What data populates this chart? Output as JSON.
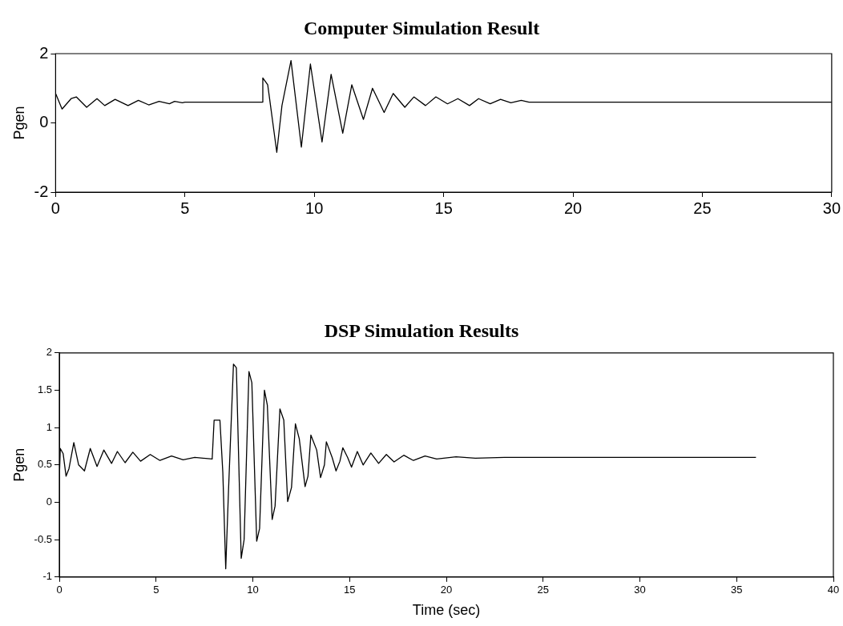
{
  "chart_data": [
    {
      "type": "line",
      "title": "Computer Simulation Result",
      "ylabel": "Pgen",
      "color": "#000000",
      "xlim": [
        0,
        30
      ],
      "xticks": [
        0,
        5,
        10,
        15,
        20,
        25,
        30
      ],
      "ylim": [
        -2,
        2
      ],
      "yticks": [
        -2,
        0,
        2
      ],
      "x": [
        0,
        0.25,
        0.6,
        0.8,
        1.2,
        1.6,
        1.9,
        2.3,
        2.8,
        3.2,
        3.6,
        4.0,
        4.4,
        4.6,
        4.9,
        5.0,
        8.0,
        8.01,
        8.2,
        8.55,
        8.75,
        9.1,
        9.5,
        9.85,
        10.3,
        10.65,
        11.1,
        11.45,
        11.9,
        12.25,
        12.7,
        13.05,
        13.5,
        13.85,
        14.3,
        14.7,
        15.15,
        15.55,
        16.0,
        16.35,
        16.8,
        17.2,
        17.6,
        18.0,
        18.3,
        30
      ],
      "values": [
        0.85,
        0.4,
        0.7,
        0.75,
        0.45,
        0.7,
        0.5,
        0.68,
        0.5,
        0.65,
        0.52,
        0.62,
        0.55,
        0.62,
        0.58,
        0.6,
        0.6,
        1.3,
        1.1,
        -0.85,
        0.5,
        1.8,
        -0.7,
        1.7,
        -0.55,
        1.4,
        -0.3,
        1.1,
        0.1,
        1.0,
        0.3,
        0.85,
        0.45,
        0.75,
        0.5,
        0.75,
        0.55,
        0.7,
        0.5,
        0.7,
        0.55,
        0.68,
        0.58,
        0.65,
        0.6,
        0.6
      ]
    },
    {
      "type": "line",
      "title": "DSP Simulation Results",
      "xlabel": "Time (sec)",
      "ylabel": "Pgen",
      "color": "#000000",
      "xlim": [
        0,
        40
      ],
      "xticks": [
        0,
        5,
        10,
        15,
        20,
        25,
        30,
        35,
        40
      ],
      "ylim": [
        -1,
        2
      ],
      "yticks": [
        -1,
        -0.5,
        0,
        0.5,
        1,
        1.5,
        2
      ],
      "x": [
        0,
        0.05,
        0.2,
        0.35,
        0.5,
        0.75,
        1.0,
        1.3,
        1.6,
        1.95,
        2.3,
        2.7,
        3.0,
        3.4,
        3.8,
        4.2,
        4.7,
        5.2,
        5.8,
        6.4,
        7.0,
        7.9,
        8.0,
        8.3,
        8.45,
        8.6,
        8.75,
        9.0,
        9.15,
        9.4,
        9.55,
        9.8,
        9.95,
        10.2,
        10.35,
        10.6,
        10.75,
        11.0,
        11.15,
        11.4,
        11.6,
        11.8,
        12.0,
        12.2,
        12.4,
        12.7,
        12.85,
        13.0,
        13.3,
        13.5,
        13.7,
        13.8,
        14.1,
        14.3,
        14.5,
        14.65,
        14.9,
        15.1,
        15.4,
        15.7,
        16.1,
        16.5,
        16.9,
        17.3,
        17.8,
        18.3,
        18.9,
        19.5,
        20.5,
        21.5,
        23,
        36
      ],
      "values": [
        0.3,
        0.72,
        0.65,
        0.35,
        0.45,
        0.8,
        0.5,
        0.42,
        0.72,
        0.48,
        0.7,
        0.52,
        0.68,
        0.53,
        0.67,
        0.55,
        0.64,
        0.56,
        0.62,
        0.57,
        0.6,
        0.58,
        1.1,
        1.1,
        0.4,
        -0.89,
        0.2,
        1.85,
        1.8,
        -0.75,
        -0.5,
        1.75,
        1.6,
        -0.52,
        -0.35,
        1.5,
        1.3,
        -0.23,
        -0.05,
        1.25,
        1.1,
        0.01,
        0.2,
        1.05,
        0.85,
        0.21,
        0.35,
        0.9,
        0.7,
        0.33,
        0.5,
        0.81,
        0.6,
        0.42,
        0.55,
        0.73,
        0.6,
        0.47,
        0.68,
        0.5,
        0.66,
        0.52,
        0.64,
        0.54,
        0.63,
        0.56,
        0.62,
        0.58,
        0.61,
        0.59,
        0.6,
        0.6
      ]
    }
  ]
}
